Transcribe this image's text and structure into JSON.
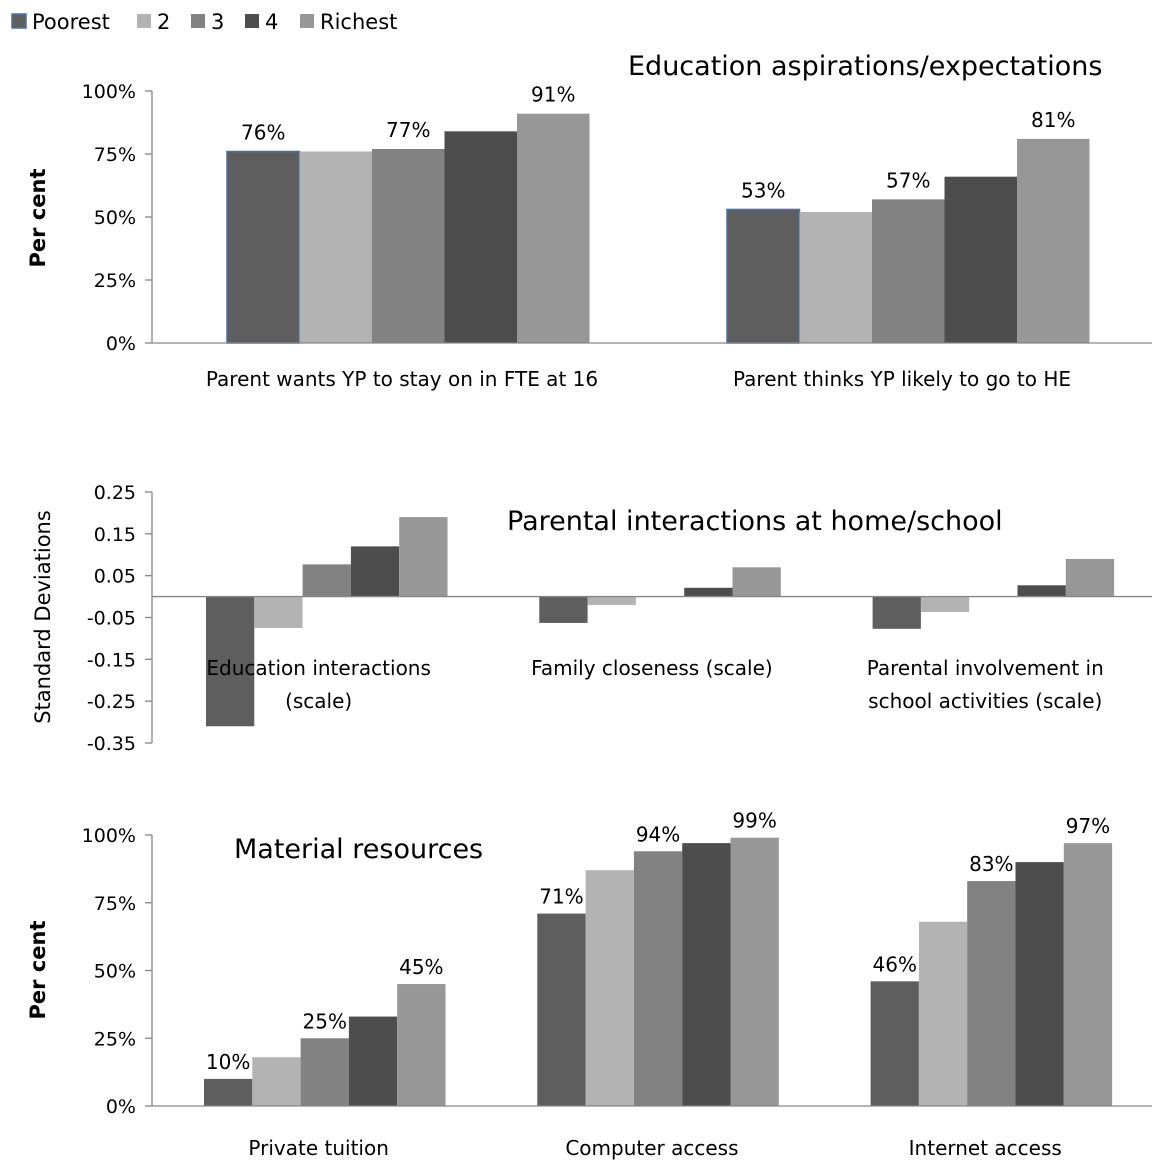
{
  "legend": {
    "items": [
      {
        "name": "Poorest",
        "color": "#5e5e5e",
        "border": "#4a6fa5"
      },
      {
        "name": "2",
        "color": "#b3b3b3"
      },
      {
        "name": "3",
        "color": "#828282"
      },
      {
        "name": "4",
        "color": "#4d4d4d"
      },
      {
        "name": "Richest",
        "color": "#979797"
      }
    ]
  },
  "chart_data": [
    {
      "type": "bar",
      "title": "Education aspirations/expectations",
      "ylabel": "Per cent",
      "ylim": [
        0,
        100
      ],
      "yticks": [
        "0%",
        "25%",
        "50%",
        "75%",
        "100%"
      ],
      "ytick_values": [
        0,
        25,
        50,
        75,
        100
      ],
      "categories": [
        "Parent wants YP to stay on in FTE at 16",
        "Parent thinks YP likely to go to HE"
      ],
      "series": [
        {
          "name": "Poorest",
          "values": [
            76,
            53
          ]
        },
        {
          "name": "2",
          "values": [
            76,
            52
          ]
        },
        {
          "name": "3",
          "values": [
            77,
            57
          ]
        },
        {
          "name": "4",
          "values": [
            84,
            66
          ]
        },
        {
          "name": "Richest",
          "values": [
            91,
            81
          ]
        }
      ],
      "data_labels": [
        {
          "series": 0,
          "category": 0,
          "text": "76%"
        },
        {
          "series": 2,
          "category": 0,
          "text": "77%"
        },
        {
          "series": 4,
          "category": 0,
          "text": "91%"
        },
        {
          "series": 0,
          "category": 1,
          "text": "53%"
        },
        {
          "series": 2,
          "category": 1,
          "text": "57%"
        },
        {
          "series": 4,
          "category": 1,
          "text": "81%"
        }
      ]
    },
    {
      "type": "bar",
      "title": "Parental interactions at home/school",
      "ylabel": "Standard Deviations",
      "ylim": [
        -0.35,
        0.25
      ],
      "yticks": [
        "-0.35",
        "-0.25",
        "-0.15",
        "-0.05",
        "0.05",
        "0.15",
        "0.25"
      ],
      "ytick_values": [
        -0.35,
        -0.25,
        -0.15,
        -0.05,
        0.05,
        0.15,
        0.25
      ],
      "categories": [
        [
          "Education interactions",
          "(scale)"
        ],
        [
          "Family closeness (scale)"
        ],
        [
          "Parental involvement in",
          "school activities (scale)"
        ]
      ],
      "series": [
        {
          "name": "Poorest",
          "values": [
            -0.31,
            -0.063,
            -0.077
          ]
        },
        {
          "name": "2",
          "values": [
            -0.075,
            -0.02,
            -0.037
          ]
        },
        {
          "name": "3",
          "values": [
            0.077,
            0.0,
            0.0
          ]
        },
        {
          "name": "4",
          "values": [
            0.12,
            0.021,
            0.027
          ]
        },
        {
          "name": "Richest",
          "values": [
            0.19,
            0.07,
            0.09
          ]
        }
      ],
      "data_labels": []
    },
    {
      "type": "bar",
      "title": "Material resources",
      "ylabel": "Per cent",
      "ylim": [
        0,
        100
      ],
      "yticks": [
        "0%",
        "25%",
        "50%",
        "75%",
        "100%"
      ],
      "ytick_values": [
        0,
        25,
        50,
        75,
        100
      ],
      "categories": [
        "Private tuition",
        "Computer access",
        "Internet access"
      ],
      "series": [
        {
          "name": "Poorest",
          "values": [
            10,
            71,
            46
          ]
        },
        {
          "name": "2",
          "values": [
            18,
            87,
            68
          ]
        },
        {
          "name": "3",
          "values": [
            25,
            94,
            83
          ]
        },
        {
          "name": "4",
          "values": [
            33,
            97,
            90
          ]
        },
        {
          "name": "Richest",
          "values": [
            45,
            99,
            97
          ]
        }
      ],
      "data_labels": [
        {
          "series": 0,
          "category": 0,
          "text": "10%"
        },
        {
          "series": 2,
          "category": 0,
          "text": "25%"
        },
        {
          "series": 4,
          "category": 0,
          "text": "45%"
        },
        {
          "series": 0,
          "category": 1,
          "text": "71%"
        },
        {
          "series": 2,
          "category": 1,
          "text": "94%"
        },
        {
          "series": 4,
          "category": 1,
          "text": "99%"
        },
        {
          "series": 0,
          "category": 2,
          "text": "46%"
        },
        {
          "series": 2,
          "category": 2,
          "text": "83%"
        },
        {
          "series": 4,
          "category": 2,
          "text": "97%"
        }
      ]
    }
  ]
}
